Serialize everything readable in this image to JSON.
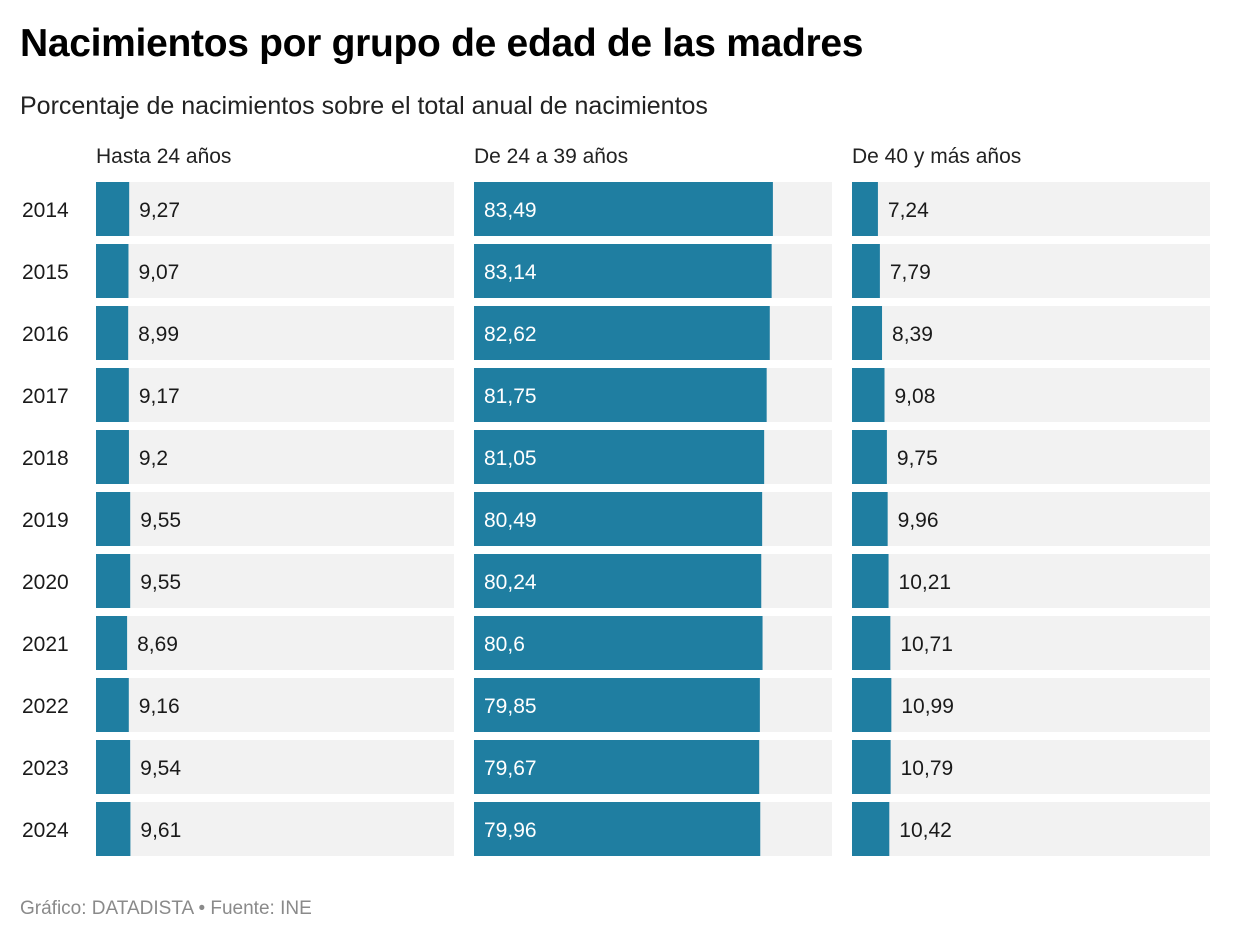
{
  "title": "Nacimientos por grupo de edad de las madres",
  "subtitle": "Porcentaje de nacimientos sobre el total anual de nacimientos",
  "footer": {
    "credit": "Gráfico: DATADISTA",
    "separator": "•",
    "source": "Fuente: INE"
  },
  "colors": {
    "bar": "#1f7ea1",
    "track": "#f2f2f2",
    "label_dark": "#1a1a1a",
    "label_light": "#ffffff"
  },
  "chart_data": {
    "type": "bar",
    "orientation": "horizontal",
    "layout": "small-multiples",
    "categories": [
      "2014",
      "2015",
      "2016",
      "2017",
      "2018",
      "2019",
      "2020",
      "2021",
      "2022",
      "2023",
      "2024"
    ],
    "xlim": [
      0,
      100
    ],
    "series": [
      {
        "name": "Hasta 24 años",
        "values": [
          9.27,
          9.07,
          8.99,
          9.17,
          9.2,
          9.55,
          9.55,
          8.69,
          9.16,
          9.54,
          9.61
        ],
        "labels": [
          "9,27",
          "9,07",
          "8,99",
          "9,17",
          "9,2",
          "9,55",
          "9,55",
          "8,69",
          "9,16",
          "9,54",
          "9,61"
        ]
      },
      {
        "name": "De 24 a 39 años",
        "values": [
          83.49,
          83.14,
          82.62,
          81.75,
          81.05,
          80.49,
          80.24,
          80.6,
          79.85,
          79.67,
          79.96
        ],
        "labels": [
          "83,49",
          "83,14",
          "82,62",
          "81,75",
          "81,05",
          "80,49",
          "80,24",
          "80,6",
          "79,85",
          "79,67",
          "79,96"
        ]
      },
      {
        "name": "De 40 y más años",
        "values": [
          7.24,
          7.79,
          8.39,
          9.08,
          9.75,
          9.96,
          10.21,
          10.71,
          10.99,
          10.79,
          10.42
        ],
        "labels": [
          "7,24",
          "7,79",
          "8,39",
          "9,08",
          "9,75",
          "9,96",
          "10,21",
          "10,71",
          "10,99",
          "10,79",
          "10,42"
        ]
      }
    ]
  }
}
